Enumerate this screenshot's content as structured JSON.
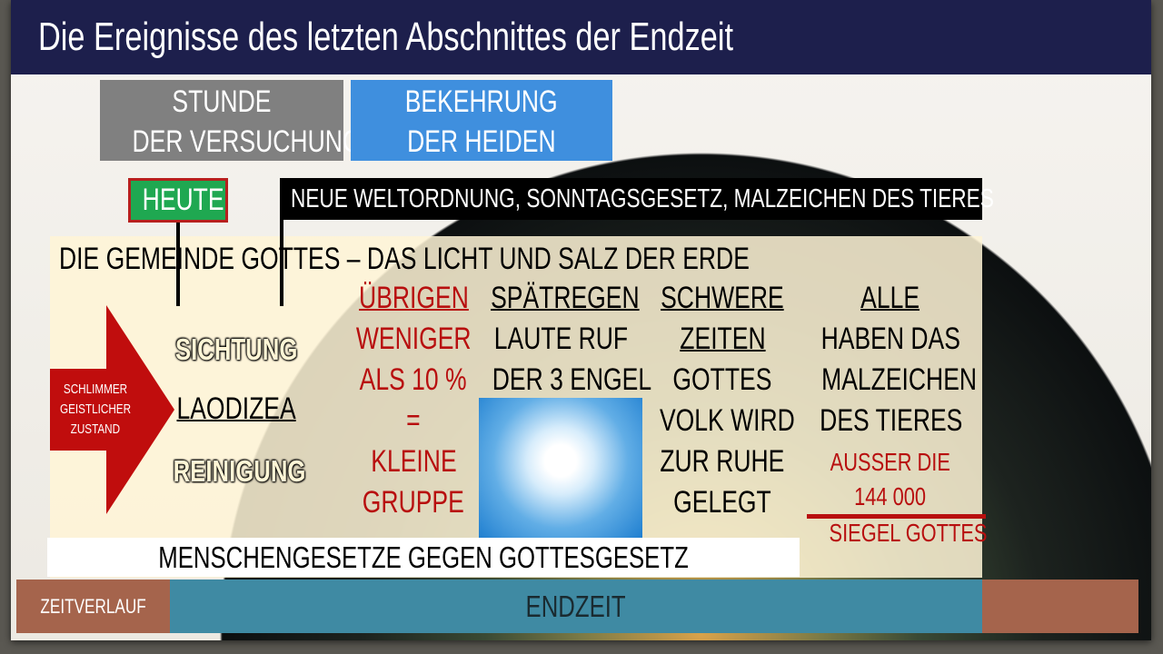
{
  "title": "Die Ereignisse des letzten Abschnittes der Endzeit",
  "top_boxes": {
    "left": [
      "STUNDE",
      "DER VERSUCHUNG"
    ],
    "right": [
      "BEKEHRUNG",
      "DER HEIDEN"
    ]
  },
  "heute": "HEUTE",
  "banner": "NEUE WELTORDNUNG, SONNTAGSGESETZ, MALZEICHEN DES TIERES",
  "heading": "DIE GEMEINDE GOTTES – DAS LICHT UND SALZ DER ERDE",
  "arrow": [
    "SCHLIMMER",
    "GEISTLICHER",
    "ZUSTAND"
  ],
  "stack": {
    "top": "SICHTUNG",
    "middle": "LAODIZEA",
    "bottom": "REINIGUNG"
  },
  "col1": [
    "ÜBRIGEN",
    "WENIGER",
    "ALS 10 %",
    "=",
    "KLEINE",
    "GRUPPE"
  ],
  "col2": [
    "SPÄTREGEN",
    "LAUTE RUF",
    "DER 3 ENGEL"
  ],
  "col3": [
    "SCHWERE",
    "ZEITEN",
    "GOTTES",
    "VOLK WIRD",
    "ZUR RUHE",
    "GELEGT"
  ],
  "col4": [
    "ALLE",
    "HABEN DAS",
    "MALZEICHEN",
    "DES TIERES"
  ],
  "col4_red": [
    "AUSSER DIE",
    "144 000",
    "SIEGEL GOTTES"
  ],
  "white_bar": "MENSCHENGESETZE GEGEN GOTTESGESETZ",
  "timeline": {
    "left": "ZEITVERLAUF",
    "center": "ENDZEIT"
  },
  "colors": {
    "title_bg": "#1d1f4c",
    "gray": "#808080",
    "blue": "#3f8fde",
    "green": "#1fa851",
    "red": "#b80f0f",
    "teal": "#3f8aa3",
    "brown": "#a5644c"
  }
}
